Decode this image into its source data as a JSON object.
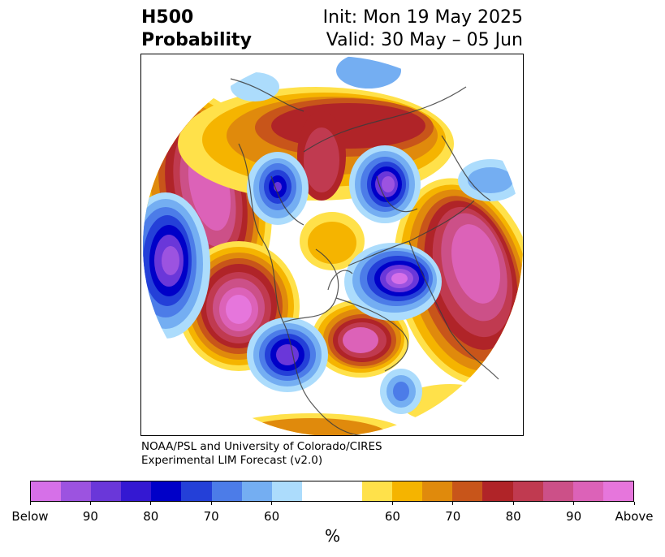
{
  "title": {
    "left_line1": "H500",
    "left_line2": "Probability",
    "right_line1": "Init: Mon 19 May 2025",
    "right_line2": "Valid: 30 May – 05 Jun"
  },
  "credit": {
    "line1": "NOAA/PSL and University of Colorado/CIRES",
    "line2": "Experimental LIM Forecast (v2.0)"
  },
  "colorbar": {
    "colors": [
      "#d670e8",
      "#9c53e0",
      "#6a37d9",
      "#3418d2",
      "#0000c8",
      "#2440d8",
      "#4c7ce8",
      "#74aef2",
      "#acdcfc",
      "#ffffff",
      "#ffffff",
      "#ffe14a",
      "#f5b400",
      "#e08a0c",
      "#c8551a",
      "#b02428",
      "#c03a50",
      "#cc5088",
      "#dc62b8",
      "#e676dc"
    ],
    "tick_labels": [
      "Below",
      "90",
      "80",
      "70",
      "60",
      "60",
      "70",
      "80",
      "90",
      "Above"
    ],
    "unit": "%"
  },
  "map": {
    "projection": "north-polar-stereographic",
    "field": "500 hPa height anomaly probability"
  }
}
